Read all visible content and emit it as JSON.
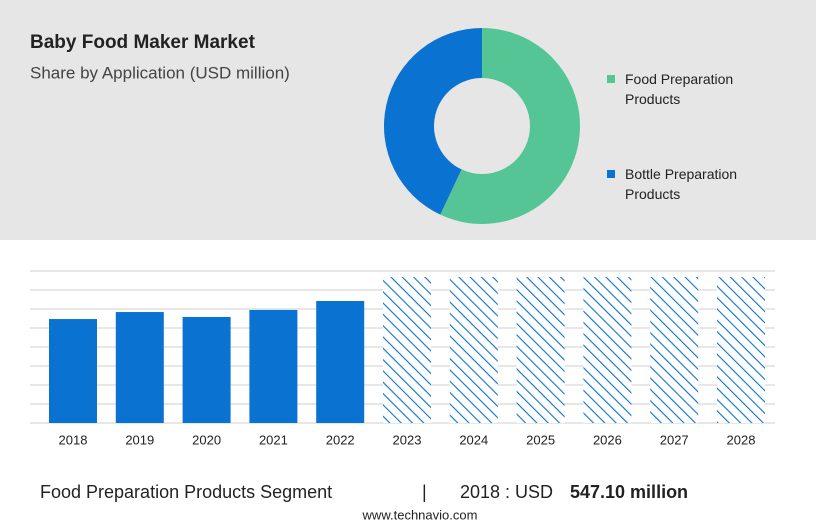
{
  "chart_data": [
    {
      "type": "pie",
      "title": "Baby Food Maker Market",
      "subtitle": "Share by Application (USD million)",
      "categories": [
        "Food Preparation Products",
        "Bottle Preparation Products"
      ],
      "values": [
        57,
        43
      ],
      "colors": [
        "#56c596",
        "#0a72d1"
      ],
      "donut": true,
      "legend": "right"
    },
    {
      "type": "bar",
      "categories": [
        "2018",
        "2019",
        "2020",
        "2021",
        "2022",
        "2023",
        "2024",
        "2025",
        "2026",
        "2027",
        "2028"
      ],
      "values": [
        547.1,
        584,
        558,
        595,
        642,
        768,
        768,
        768,
        768,
        768,
        768
      ],
      "hatch": [
        false,
        false,
        false,
        false,
        false,
        true,
        true,
        true,
        true,
        true,
        true
      ],
      "value_labels": [
        "547.10 million",
        null,
        null,
        null,
        null,
        null,
        null,
        null,
        null,
        null,
        null
      ],
      "color": "#0a72d1",
      "ylim": [
        0,
        800
      ],
      "yticks": [
        0,
        100,
        200,
        300,
        400,
        500,
        600,
        700,
        800
      ],
      "grid": true,
      "show_tick_labels": false,
      "footer_segment": "Food Preparation Products Segment",
      "footer_divider": "|",
      "footer_prefix": "2018 : USD"
    }
  ],
  "source": "www.technavio.com"
}
